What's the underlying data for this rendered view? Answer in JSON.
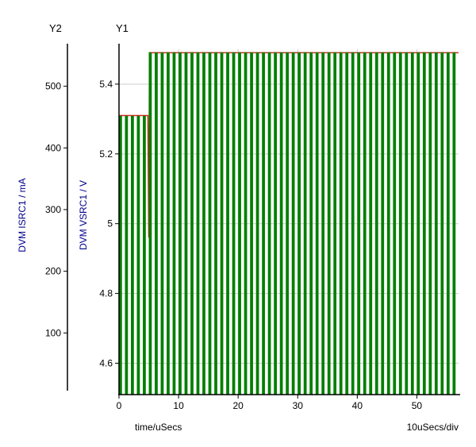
{
  "labels": {
    "y1_axis_name": "Y1",
    "y2_axis_name": "Y2"
  },
  "chart_data": {
    "type": "line",
    "title": "",
    "x": {
      "label": "time/uSecs",
      "per_div": "10uSecs/div",
      "range_us": [
        0,
        57
      ],
      "ticks": [
        0,
        10,
        20,
        30,
        40,
        50
      ],
      "grid": true
    },
    "y1": {
      "label": "DVM VSRC1 / V",
      "range": [
        4.51,
        5.5
      ],
      "ticks": [
        4.6,
        4.8,
        5,
        5.2,
        5.4
      ],
      "grid": true
    },
    "y2": {
      "label": "DVM ISRC1 / mA",
      "range": [
        0,
        560
      ],
      "ticks": [
        100,
        200,
        300,
        400,
        500
      ]
    },
    "series": [
      {
        "name": "DVM VSRC1",
        "axis": "y1",
        "type": "line",
        "color": "#d42a20",
        "points_us_v": [
          [
            0,
            5.31
          ],
          [
            4.85,
            5.31
          ],
          [
            5.0,
            4.96
          ],
          [
            5.12,
            5.49
          ],
          [
            57,
            5.49
          ]
        ]
      },
      {
        "name": "DVM ISRC1",
        "axis": "y2",
        "type": "pulse_bars",
        "color": "#007f00",
        "period_us": 1,
        "duty": 0.5,
        "low_mA": 0,
        "segments": [
          {
            "from_us": 0,
            "to_us": 5,
            "high_mA": 452
          },
          {
            "from_us": 5,
            "to_us": 57,
            "high_mA": 555
          }
        ]
      }
    ],
    "grid_color": "#cccccc",
    "legend": "none"
  }
}
